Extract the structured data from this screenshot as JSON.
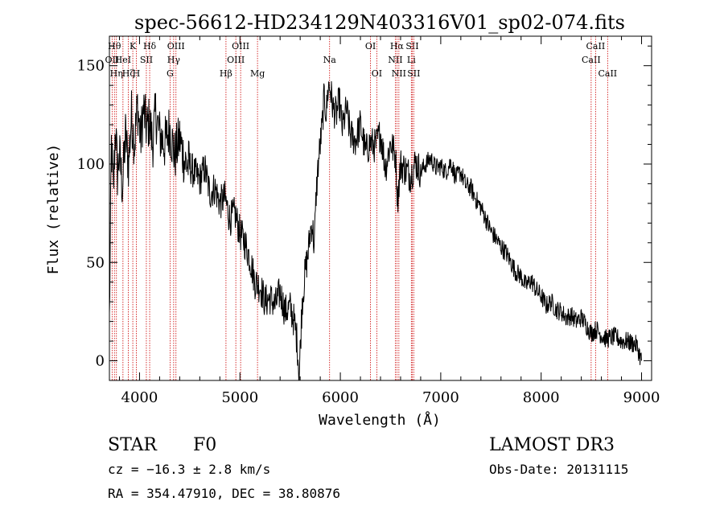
{
  "chart_data": {
    "type": "line",
    "title": "spec-56612-HD234129N403316V01_sp02-074.fits",
    "xlabel": "Wavelength (Å)",
    "ylabel": "Flux (relative)",
    "xlim": [
      3700,
      9100
    ],
    "ylim": [
      -10,
      165
    ],
    "x_ticks": [
      4000,
      5000,
      6000,
      7000,
      8000,
      9000
    ],
    "y_ticks": [
      0,
      50,
      100,
      150
    ],
    "series": [
      {
        "name": "spectrum",
        "x": [
          3700,
          3720,
          3740,
          3760,
          3780,
          3800,
          3830,
          3860,
          3890,
          3920,
          3950,
          3980,
          4010,
          4040,
          4070,
          4100,
          4130,
          4160,
          4200,
          4250,
          4300,
          4350,
          4400,
          4450,
          4500,
          4550,
          4600,
          4650,
          4700,
          4750,
          4800,
          4850,
          4900,
          4950,
          5000,
          5050,
          5100,
          5150,
          5200,
          5250,
          5300,
          5350,
          5400,
          5450,
          5500,
          5540,
          5570,
          5590,
          5600,
          5620,
          5650,
          5680,
          5700,
          5720,
          5740,
          5760,
          5780,
          5800,
          5820,
          5840,
          5860,
          5880,
          5900,
          5930,
          5960,
          5990,
          6020,
          6060,
          6100,
          6150,
          6200,
          6250,
          6300,
          6350,
          6400,
          6450,
          6500,
          6550,
          6570,
          6600,
          6650,
          6700,
          6750,
          6800,
          6850,
          6900,
          6950,
          7000,
          7050,
          7100,
          7150,
          7200,
          7250,
          7300,
          7350,
          7400,
          7450,
          7500,
          7550,
          7600,
          7650,
          7700,
          7750,
          7800,
          7850,
          7900,
          7950,
          8000,
          8050,
          8100,
          8150,
          8200,
          8250,
          8300,
          8350,
          8400,
          8450,
          8500,
          8550,
          8600,
          8650,
          8700,
          8750,
          8800,
          8850,
          8900,
          8950,
          9000
        ],
        "values": [
          20,
          110,
          85,
          120,
          95,
          105,
          88,
          115,
          100,
          125,
          110,
          130,
          112,
          128,
          118,
          122,
          110,
          126,
          115,
          110,
          118,
          104,
          113,
          101,
          99,
          95,
          92,
          98,
          85,
          88,
          80,
          83,
          72,
          75,
          65,
          60,
          52,
          40,
          38,
          30,
          32,
          28,
          35,
          25,
          27,
          20,
          10,
          -8,
          5,
          30,
          45,
          55,
          65,
          70,
          58,
          85,
          100,
          110,
          120,
          135,
          125,
          140,
          138,
          128,
          125,
          132,
          118,
          128,
          115,
          112,
          120,
          106,
          111,
          109,
          116,
          98,
          111,
          104,
          82,
          100,
          97,
          94,
          101,
          96,
          100,
          103,
          98,
          99,
          96,
          101,
          93,
          96,
          89,
          88,
          82,
          78,
          72,
          66,
          62,
          58,
          55,
          50,
          45,
          43,
          38,
          41,
          36,
          33,
          28,
          30,
          26,
          25,
          22,
          23,
          20,
          22,
          18,
          14,
          16,
          13,
          11,
          12,
          12,
          10,
          10,
          9,
          8,
          0
        ]
      }
    ],
    "line_markers": [
      {
        "wavelength": 3727,
        "row": 2,
        "label": "OII"
      },
      {
        "wavelength": 3750,
        "row": 1,
        "label": "Hθ"
      },
      {
        "wavelength": 3770,
        "row": 3,
        "label": "Hη"
      },
      {
        "wavelength": 3835,
        "row": 2,
        "label": "HeI"
      },
      {
        "wavelength": 3889,
        "row": 3,
        "label": "Hζ"
      },
      {
        "wavelength": 3933,
        "row": 1,
        "label": "K"
      },
      {
        "wavelength": 3968,
        "row": 3,
        "label": "H"
      },
      {
        "wavelength": 4068,
        "row": 2,
        "label": "SII"
      },
      {
        "wavelength": 4101,
        "row": 1,
        "label": "Hδ"
      },
      {
        "wavelength": 4304,
        "row": 3,
        "label": "G"
      },
      {
        "wavelength": 4340,
        "row": 2,
        "label": "Hγ"
      },
      {
        "wavelength": 4363,
        "row": 1,
        "label": "OIII"
      },
      {
        "wavelength": 4861,
        "row": 3,
        "label": "Hβ"
      },
      {
        "wavelength": 4959,
        "row": 2,
        "label": "OIII"
      },
      {
        "wavelength": 5007,
        "row": 1,
        "label": "OIII"
      },
      {
        "wavelength": 5175,
        "row": 3,
        "label": "Mg"
      },
      {
        "wavelength": 5893,
        "row": 2,
        "label": "Na"
      },
      {
        "wavelength": 6300,
        "row": 1,
        "label": "OI"
      },
      {
        "wavelength": 6363,
        "row": 3,
        "label": "OI"
      },
      {
        "wavelength": 6548,
        "row": 2,
        "label": "NII"
      },
      {
        "wavelength": 6563,
        "row": 1,
        "label": "Hα"
      },
      {
        "wavelength": 6583,
        "row": 3,
        "label": "NII"
      },
      {
        "wavelength": 6707,
        "row": 2,
        "label": "Li"
      },
      {
        "wavelength": 6716,
        "row": 1,
        "label": "SII"
      },
      {
        "wavelength": 6731,
        "row": 3,
        "label": "SII"
      },
      {
        "wavelength": 8498,
        "row": 2,
        "label": "CaII"
      },
      {
        "wavelength": 8542,
        "row": 1,
        "label": "CaII"
      },
      {
        "wavelength": 8662,
        "row": 3,
        "label": "CaII"
      }
    ],
    "colors": {
      "spectrum": "#000000",
      "markers": "#cc0000"
    }
  },
  "info": {
    "object_class": "STAR",
    "subclass": "F0",
    "survey": "LAMOST DR3",
    "redshift": "cz = −16.3 ± 2.8 km/s",
    "obs_date": "Obs-Date: 20131115",
    "coords": "RA = 354.47910, DEC =  38.80876"
  }
}
